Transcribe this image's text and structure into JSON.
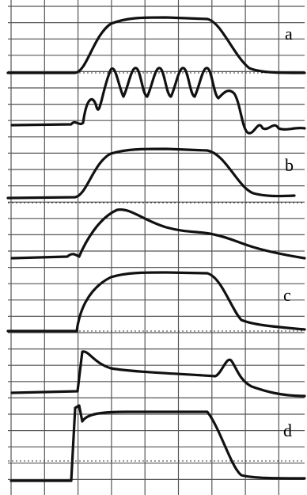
{
  "labels": [
    "a",
    "b",
    "c",
    "d"
  ]
}
